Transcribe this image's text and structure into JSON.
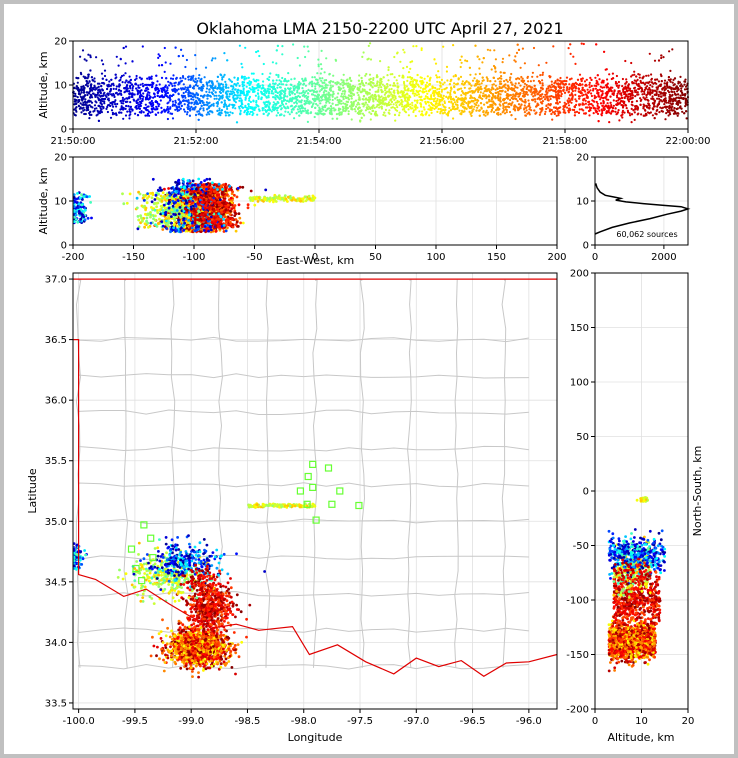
{
  "title": "Oklahoma LMA 2150-2200 UTC April 27, 2021",
  "chart_data": [
    {
      "type": "scatter",
      "panel": "time-altitude",
      "ylabel": "Altitude, km",
      "ylim": [
        0,
        20
      ],
      "yticks": [
        0,
        10,
        20
      ],
      "xticks": [
        "21:50:00",
        "21:52:00",
        "21:54:00",
        "21:56:00",
        "21:58:00",
        "22:00:00"
      ],
      "color_by": "time",
      "colormap": [
        "#00008f",
        "#0000ff",
        "#00ffff",
        "#80ff80",
        "#ffff00",
        "#ff8000",
        "#ff0000",
        "#800000"
      ],
      "band_altitude_km": [
        3,
        13
      ]
    },
    {
      "type": "scatter",
      "panel": "east-west-altitude",
      "xlabel": "East-West, km",
      "ylabel": "Altitude, km",
      "xlim": [
        -200,
        200
      ],
      "ylim": [
        0,
        20
      ],
      "xticks": [
        -200,
        -150,
        -100,
        -50,
        0,
        50,
        100,
        150,
        200
      ],
      "yticks": [
        0,
        10,
        20
      ]
    },
    {
      "type": "line",
      "panel": "altitude-histogram",
      "xlim": [
        0,
        2700
      ],
      "ylim": [
        0,
        20
      ],
      "xticks": [
        0,
        2000
      ],
      "yticks": [
        0,
        10,
        20
      ],
      "annotation": "60,062 sources",
      "profile": [
        [
          0,
          2.5
        ],
        [
          150,
          3
        ],
        [
          500,
          4
        ],
        [
          1000,
          5
        ],
        [
          1600,
          6
        ],
        [
          2100,
          7
        ],
        [
          2500,
          7.7
        ],
        [
          2700,
          8.2
        ],
        [
          2500,
          8.7
        ],
        [
          2000,
          9
        ],
        [
          1400,
          9.4
        ],
        [
          900,
          9.8
        ],
        [
          600,
          10.2
        ],
        [
          750,
          10.6
        ],
        [
          550,
          10.9
        ],
        [
          300,
          11.3
        ],
        [
          150,
          12
        ],
        [
          60,
          13
        ],
        [
          20,
          14
        ]
      ]
    },
    {
      "type": "scatter",
      "panel": "plan-view",
      "xlabel": "Longitude",
      "ylabel": "Latitude",
      "xlim": [
        -100.05,
        -95.75
      ],
      "ylim": [
        33.45,
        37.05
      ],
      "xticks": [
        -100.0,
        -99.5,
        -99.0,
        -98.5,
        -98.0,
        -97.5,
        -97.0,
        -96.5,
        -96.0
      ],
      "yticks": [
        33.5,
        34.0,
        34.5,
        35.0,
        35.5,
        36.0,
        36.5,
        37.0
      ],
      "stations": [
        [
          -97.92,
          35.47
        ],
        [
          -97.78,
          35.44
        ],
        [
          -97.96,
          35.37
        ],
        [
          -97.92,
          35.28
        ],
        [
          -98.03,
          35.25
        ],
        [
          -97.68,
          35.25
        ],
        [
          -97.97,
          35.14
        ],
        [
          -97.75,
          35.14
        ],
        [
          -97.51,
          35.13
        ],
        [
          -97.89,
          35.01
        ],
        [
          -99.42,
          34.97
        ],
        [
          -99.36,
          34.86
        ],
        [
          -99.53,
          34.77
        ],
        [
          -99.34,
          34.7
        ],
        [
          -99.49,
          34.61
        ],
        [
          -99.44,
          34.51
        ]
      ]
    },
    {
      "type": "scatter",
      "panel": "altitude-north-south",
      "xlabel": "Altitude, km",
      "ylabel": "North-South, km",
      "xlim": [
        0,
        20
      ],
      "ylim": [
        -200,
        200
      ],
      "xticks": [
        0,
        10,
        20
      ],
      "yticks": [
        -200,
        -150,
        -100,
        -50,
        0,
        50,
        100,
        150,
        200
      ]
    }
  ]
}
